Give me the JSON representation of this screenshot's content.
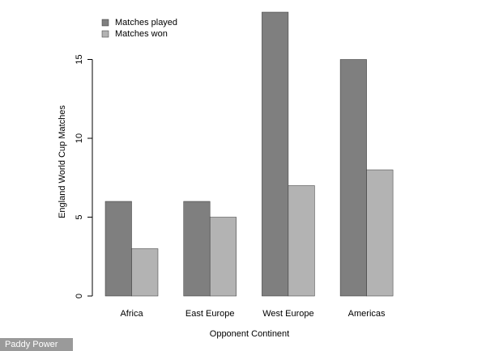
{
  "chart_data": {
    "type": "bar",
    "x_label": "Opponent Continent",
    "y_label": "England World Cup Matches",
    "categories": [
      "Africa",
      "East Europe",
      "West Europe",
      "Americas"
    ],
    "series": [
      {
        "name": "Matches played",
        "color": "#7f7f7f",
        "values": [
          6,
          6,
          18,
          15
        ]
      },
      {
        "name": "Matches won",
        "color": "#b3b3b3",
        "values": [
          3,
          5,
          7,
          8
        ]
      }
    ],
    "ylim": [
      0,
      18
    ],
    "yticks": [
      0,
      5,
      10,
      15
    ],
    "legend": "top-left"
  },
  "watermark": "Paddy Power"
}
